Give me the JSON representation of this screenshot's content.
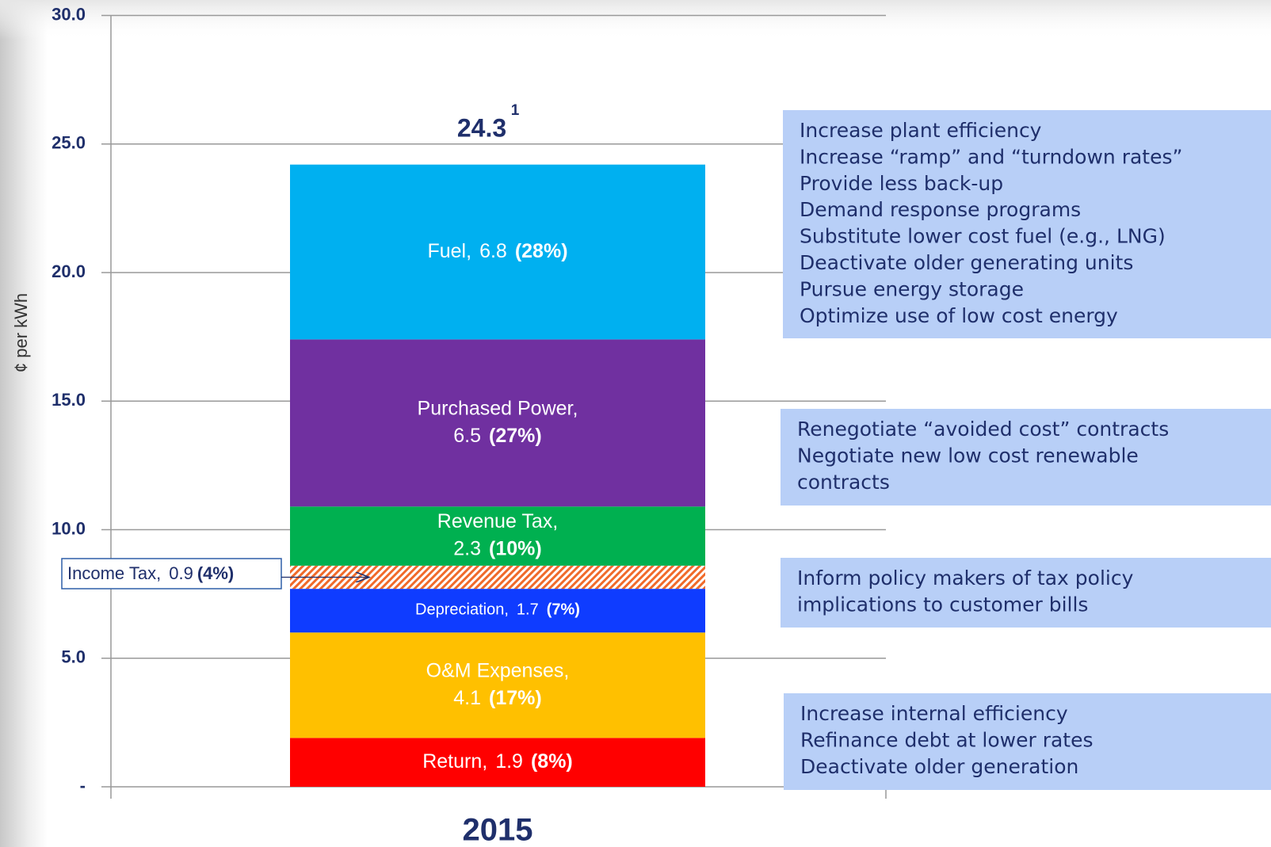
{
  "chart_data": {
    "type": "stacked_bar",
    "y_axis_label": "¢ per kWh",
    "categories": [
      "2015"
    ],
    "ylim": [
      0,
      30
    ],
    "yticks": [
      {
        "value": 0,
        "label": "-"
      },
      {
        "value": 5,
        "label": "5.0"
      },
      {
        "value": 10,
        "label": "10.0"
      },
      {
        "value": 15,
        "label": "15.0"
      },
      {
        "value": 20,
        "label": "20.0"
      },
      {
        "value": 25,
        "label": "25.0"
      },
      {
        "value": 30,
        "label": "30.0"
      }
    ],
    "grid": true,
    "total": 24.3,
    "total_note": "1",
    "series": [
      {
        "name": "Return,",
        "color": "#ff0000",
        "values": [
          1.9
        ],
        "share_label": "(8%)"
      },
      {
        "name": "O&M Expenses,",
        "color": "#ffc000",
        "values": [
          4.1
        ],
        "share_label": "(17%)",
        "wrap": true
      },
      {
        "name": "Depreciation,",
        "color": "#0f3cff",
        "values": [
          1.7
        ],
        "share_label": "(7%)",
        "small": true
      },
      {
        "name": "Income Tax,",
        "color": "#f06a2a",
        "values": [
          0.9
        ],
        "share_label": "(4%)",
        "pattern": "hatch",
        "callout": true
      },
      {
        "name": "Revenue Tax,",
        "color": "#00b050",
        "values": [
          2.3
        ],
        "share_label": "(10%)",
        "wrap": true
      },
      {
        "name": "Purchased Power,",
        "color": "#7030a0",
        "values": [
          6.5
        ],
        "share_label": "(27%)",
        "wrap": true
      },
      {
        "name": "Fuel,",
        "color": "#00b0f0",
        "values": [
          6.8
        ],
        "share_label": "(28%)"
      }
    ],
    "annotations": [
      {
        "lines": [
          "Increase plant efficiency",
          "Increase “ramp” and “turndown rates”",
          "Provide less back-up",
          "Demand response programs",
          "Substitute lower cost fuel (e.g., LNG)",
          "Deactivate older generating units",
          "Pursue energy storage",
          "Optimize use of low cost energy"
        ]
      },
      {
        "lines": [
          "Renegotiate “avoided cost” contracts",
          "Negotiate new low cost renewable",
          "contracts"
        ]
      },
      {
        "lines": [
          "Inform policy makers of tax policy",
          "implications to customer bills"
        ]
      },
      {
        "lines": [
          "Increase internal efficiency",
          "Refinance debt at lower rates",
          "Deactivate older generation"
        ]
      }
    ]
  }
}
